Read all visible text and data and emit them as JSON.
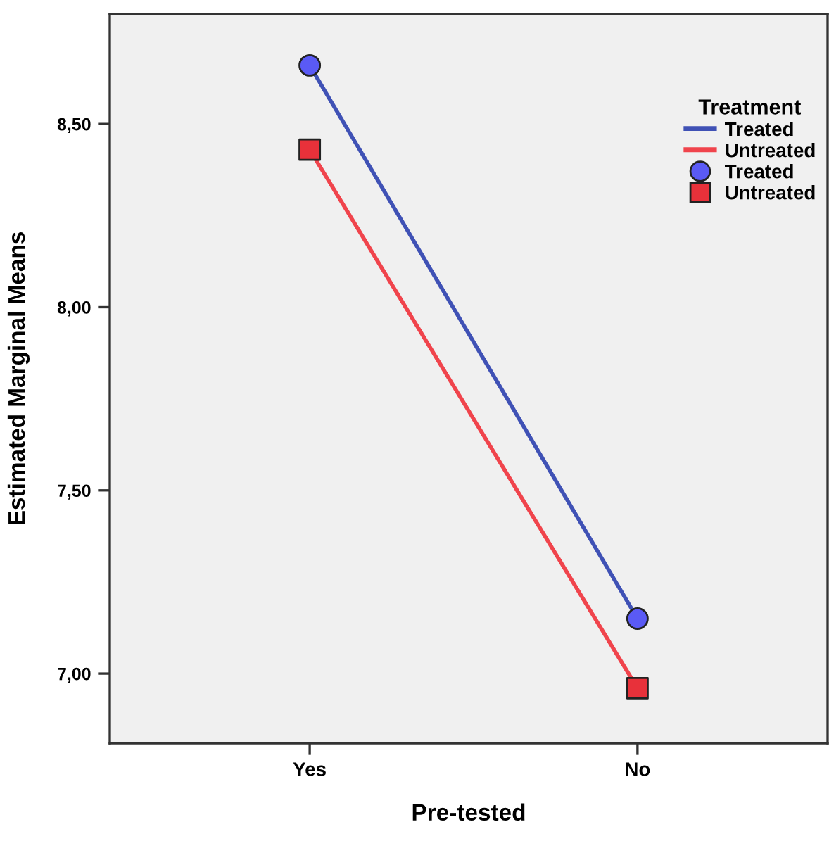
{
  "chart_data": {
    "type": "line",
    "xlabel": "Pre-tested",
    "ylabel": "Estimated Marginal Means",
    "legend_title": "Treatment",
    "categories": [
      "Yes",
      "No"
    ],
    "series": [
      {
        "name": "Treated",
        "color": "#3f51b5",
        "values": [
          8.66,
          7.15
        ],
        "marker": "none"
      },
      {
        "name": "Untreated",
        "color": "#f0444c",
        "values": [
          8.43,
          6.96
        ],
        "marker": "none"
      },
      {
        "name": "Treated",
        "type": "scatter",
        "color": "#5a5af5",
        "values": [
          8.66,
          7.15
        ],
        "marker": "circle"
      },
      {
        "name": "Untreated",
        "type": "scatter",
        "color": "#e8313a",
        "values": [
          8.43,
          6.96
        ],
        "marker": "square"
      }
    ],
    "ylim": [
      6.81,
      8.8
    ],
    "yticks": [
      {
        "value": 7.0,
        "label": "7,00"
      },
      {
        "value": 7.5,
        "label": "7,50"
      },
      {
        "value": 8.0,
        "label": "8,00"
      },
      {
        "value": 8.5,
        "label": "8,50"
      }
    ],
    "grid": false,
    "legend": "top right",
    "line_style": "solid"
  }
}
